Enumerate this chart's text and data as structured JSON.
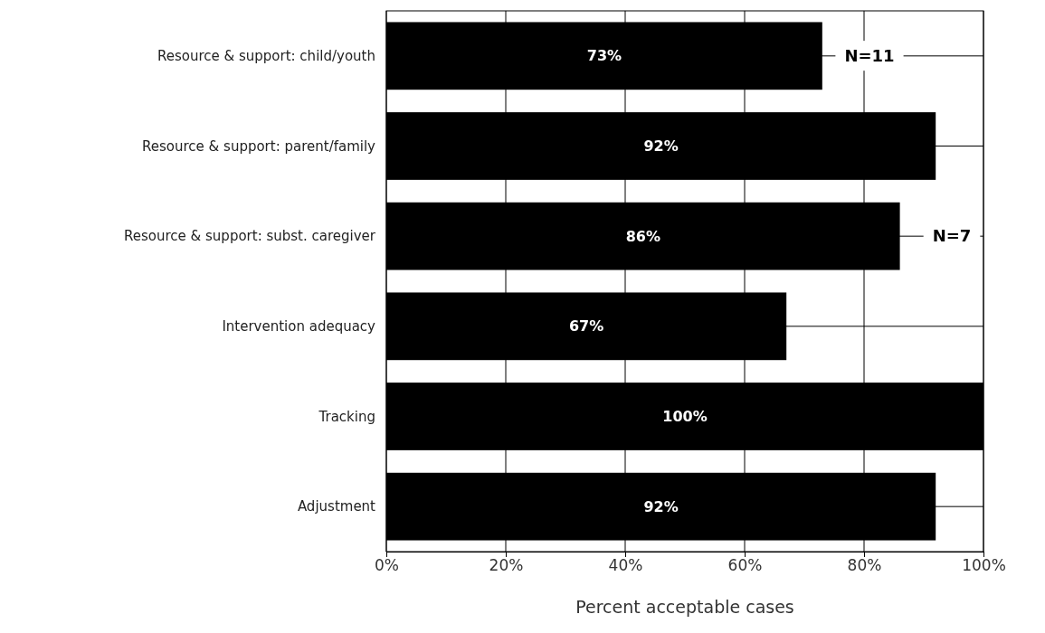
{
  "chart_data": {
    "type": "bar",
    "orientation": "horizontal",
    "xlabel": "Percent acceptable cases",
    "categories": [
      "Resource & support: child/youth",
      "Resource & support: parent/family",
      "Resource & support: subst. caregiver",
      "Intervention adequacy",
      "Tracking",
      "Adjustment"
    ],
    "values": [
      73,
      92,
      86,
      67,
      100,
      92
    ],
    "color": "#000000",
    "value_labels": [
      "73%",
      "92%",
      "86%",
      "67%",
      "100%",
      "92%"
    ],
    "xlim": [
      0,
      100
    ],
    "xticks": [
      {
        "value": 0,
        "label": "0%"
      },
      {
        "value": 20,
        "label": "20%"
      },
      {
        "value": 40,
        "label": "40%"
      },
      {
        "value": 60,
        "label": "60%"
      },
      {
        "value": 80,
        "label": "80%"
      },
      {
        "value": 100,
        "label": "100%"
      }
    ],
    "grid": true,
    "annotations": [
      "N=11",
      "N=7"
    ]
  }
}
